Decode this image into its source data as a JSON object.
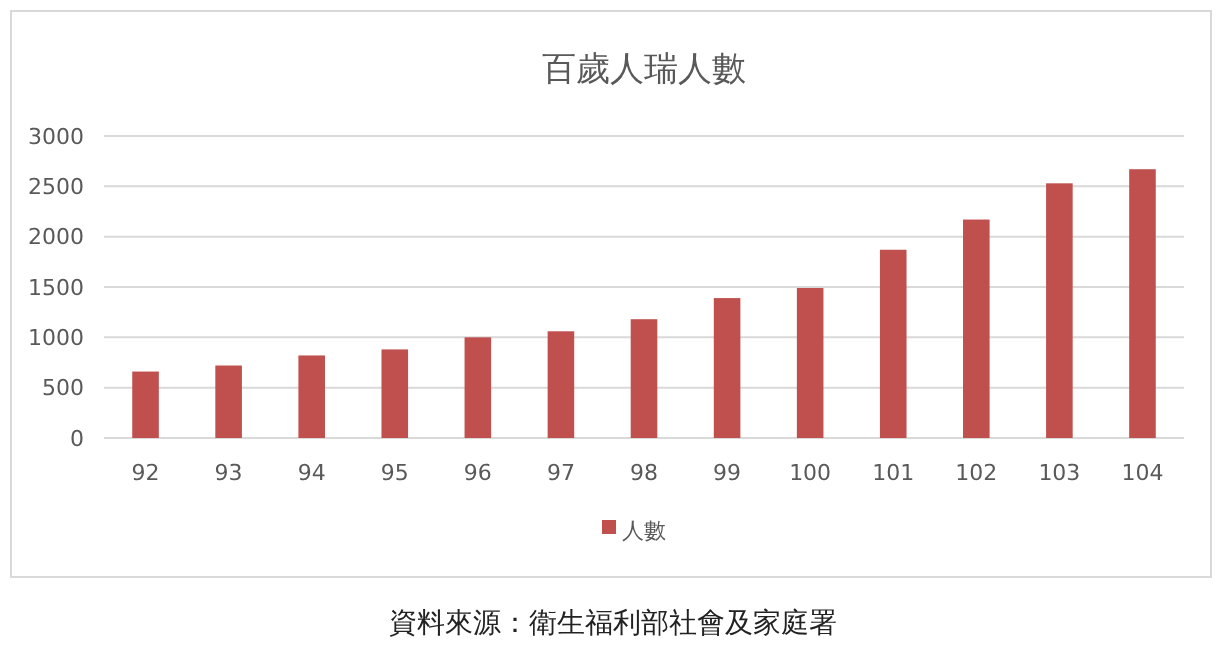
{
  "chart_data": {
    "type": "bar",
    "title": "百歲人瑞人數",
    "categories": [
      "92",
      "93",
      "94",
      "95",
      "96",
      "97",
      "98",
      "99",
      "100",
      "101",
      "102",
      "103",
      "104"
    ],
    "series": [
      {
        "name": "人數",
        "color": "#c0504d",
        "values": [
          660,
          720,
          820,
          880,
          1000,
          1060,
          1180,
          1390,
          1490,
          1870,
          2170,
          2530,
          2670
        ]
      }
    ],
    "ylim": [
      0,
      3000
    ],
    "yticks": [
      0,
      500,
      1000,
      1500,
      2000,
      2500,
      3000
    ],
    "grid": "y",
    "legend": "bottom",
    "annotations": [
      "資料來源：衛生福利部社會及家庭署"
    ]
  }
}
